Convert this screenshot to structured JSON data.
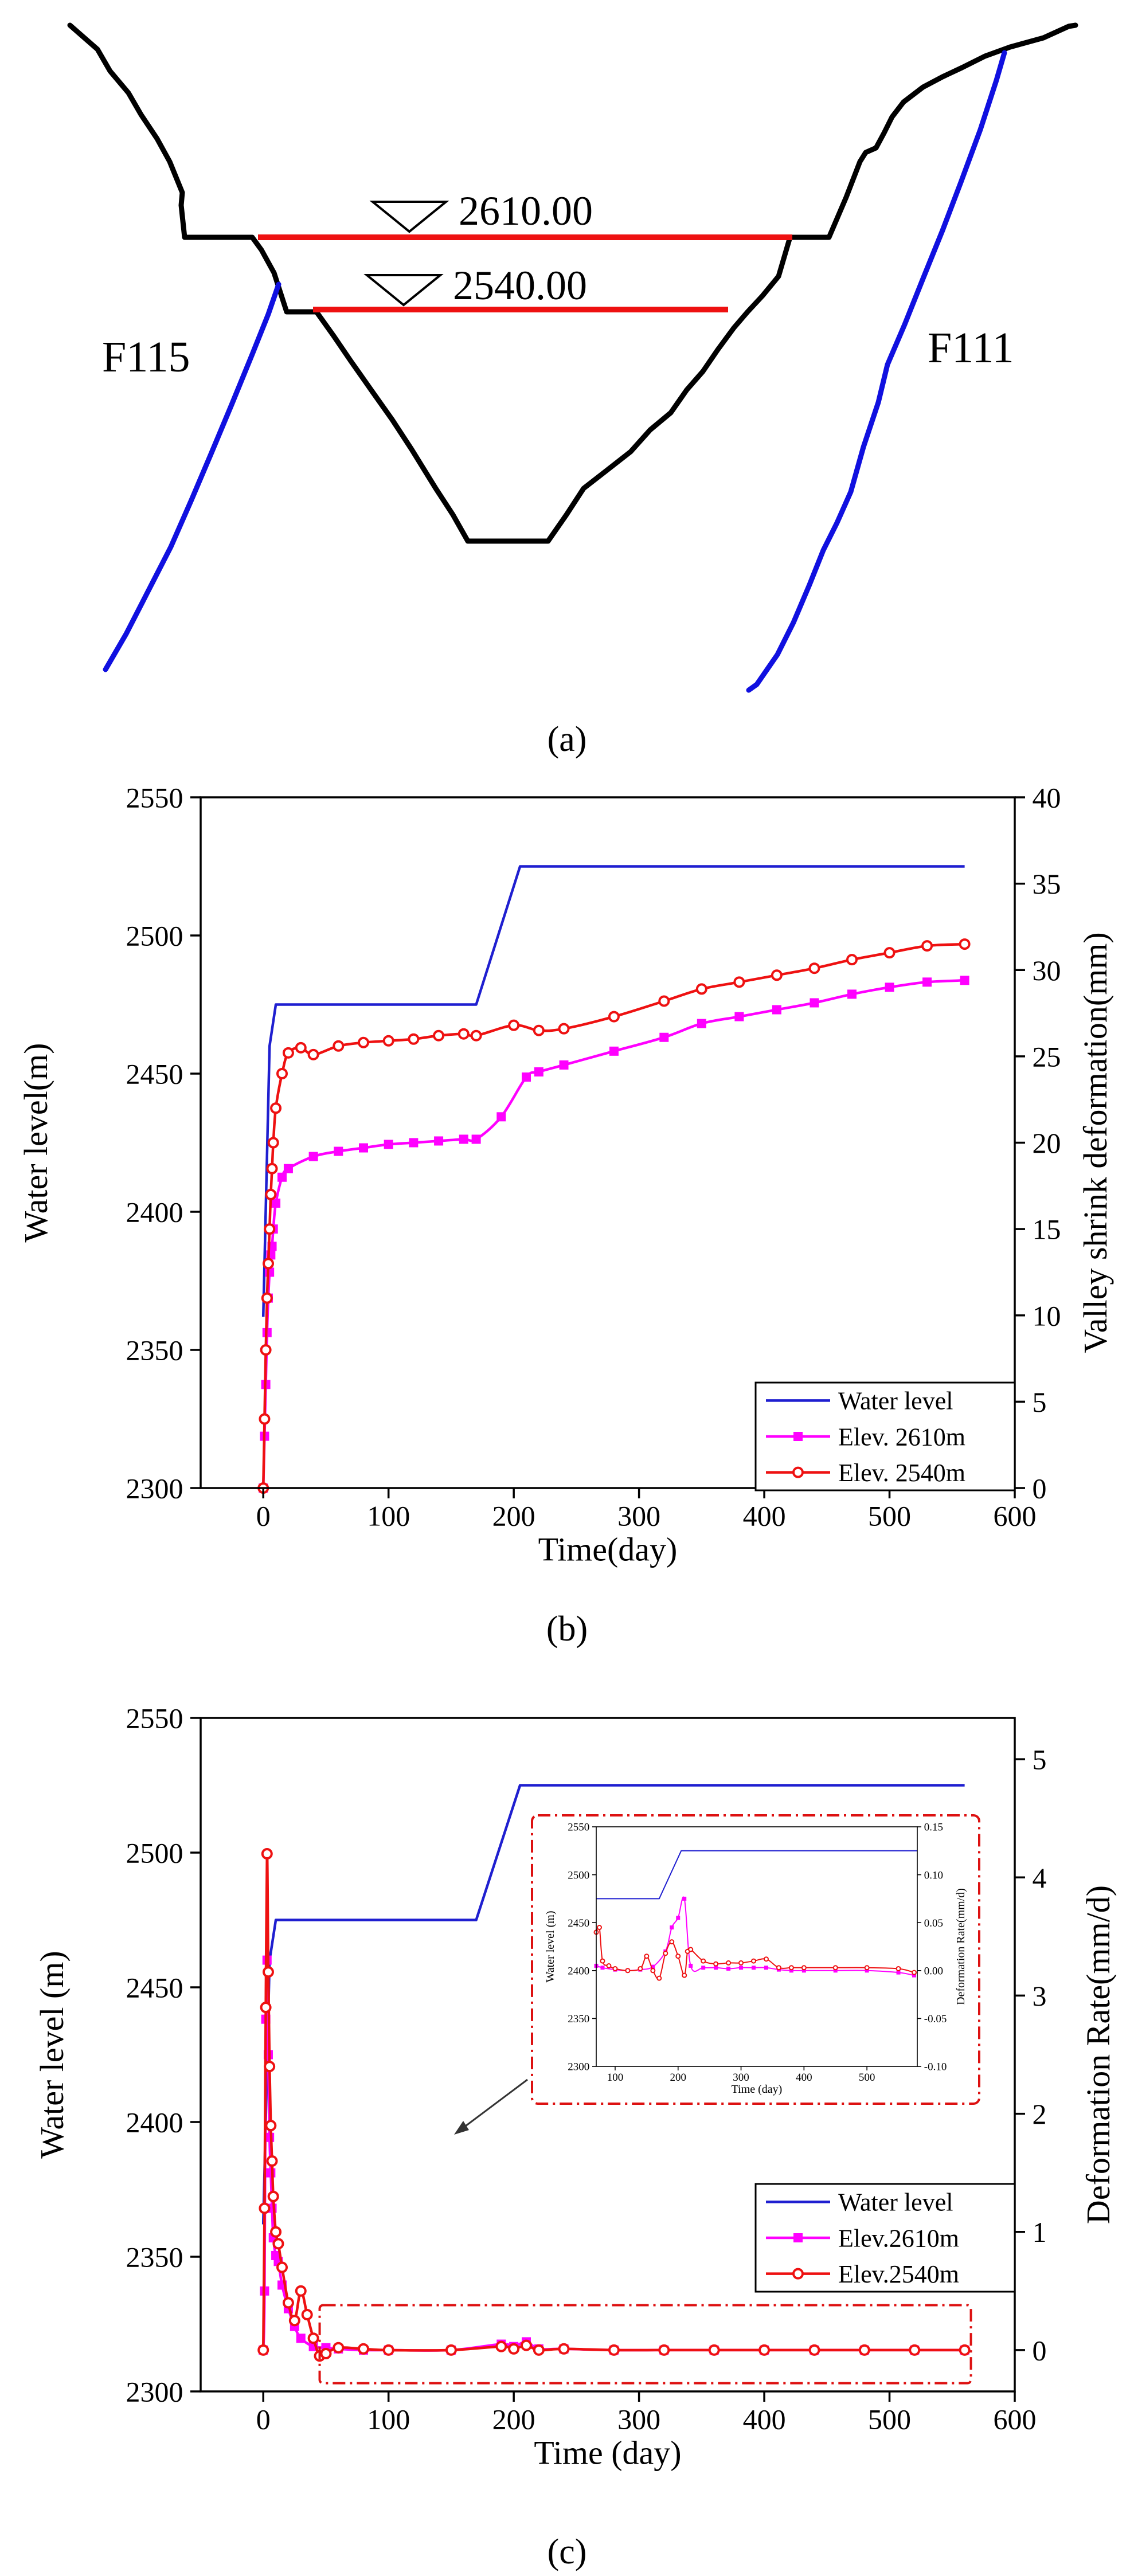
{
  "panels": {
    "a": {
      "label": "(a)",
      "water_level_1": "2610.00",
      "water_level_2": "2540.00",
      "fault_left": "F115",
      "fault_right": "F111"
    },
    "b": {
      "label": "(b)"
    },
    "c": {
      "label": "(c)"
    }
  },
  "colors": {
    "water": "#1f1fd0",
    "elev2610": "#ff00ff",
    "elev2540": "#ee1111",
    "terrain": "#000000",
    "fault": "#1010e0",
    "reservoir_line": "#ee1111",
    "inset_frame": "#dd1111"
  },
  "chart_data": [
    {
      "id": "b",
      "type": "line",
      "xlabel": "Time(day)",
      "ylabel_left": "Water level(m)",
      "ylabel_right": "Valley shrink deformation(mm)",
      "xlim": [
        -50,
        600
      ],
      "ylim_left": [
        2300,
        2550
      ],
      "ylim_right": [
        0,
        40
      ],
      "xticks": [
        0,
        100,
        200,
        300,
        400,
        500,
        600
      ],
      "yticks_left": [
        2300,
        2350,
        2400,
        2450,
        2500,
        2550
      ],
      "yticks_right": [
        0,
        5,
        10,
        15,
        20,
        25,
        30,
        35,
        40
      ],
      "legend": [
        "Water level",
        "Elev. 2610m",
        "Elev. 2540m"
      ],
      "legend_position": "bottom-right",
      "series": [
        {
          "name": "Water level",
          "axis": "left",
          "x": [
            0,
            5,
            10,
            170,
            205,
            560
          ],
          "y": [
            2362,
            2460,
            2475,
            2475,
            2525,
            2525
          ]
        },
        {
          "name": "Elev. 2610m",
          "axis": "right",
          "x": [
            0,
            1,
            2,
            3,
            4,
            5,
            6,
            7,
            8,
            10,
            15,
            20,
            40,
            60,
            80,
            100,
            120,
            140,
            160,
            170,
            190,
            210,
            220,
            240,
            280,
            320,
            350,
            380,
            410,
            440,
            470,
            500,
            530,
            560
          ],
          "y": [
            0,
            3,
            6,
            9,
            11,
            12.5,
            13.5,
            14,
            15,
            16.5,
            18,
            18.5,
            19.2,
            19.5,
            19.7,
            19.9,
            20,
            20.1,
            20.2,
            20.2,
            21.5,
            23.8,
            24.1,
            24.5,
            25.3,
            26.1,
            26.9,
            27.3,
            27.7,
            28.1,
            28.6,
            29,
            29.3,
            29.4
          ]
        },
        {
          "name": "Elev. 2540m",
          "axis": "right",
          "x": [
            0,
            1,
            2,
            3,
            4,
            5,
            6,
            7,
            8,
            10,
            15,
            20,
            30,
            40,
            60,
            80,
            100,
            120,
            140,
            160,
            170,
            200,
            220,
            240,
            280,
            320,
            350,
            380,
            410,
            440,
            470,
            500,
            530,
            560
          ],
          "y": [
            0,
            4,
            8,
            11,
            13,
            15,
            17,
            18.5,
            20,
            22,
            24,
            25.2,
            25.5,
            25.1,
            25.6,
            25.8,
            25.9,
            26,
            26.2,
            26.3,
            26.2,
            26.8,
            26.5,
            26.6,
            27.3,
            28.2,
            28.9,
            29.3,
            29.7,
            30.1,
            30.6,
            31,
            31.4,
            31.5
          ]
        }
      ]
    },
    {
      "id": "c",
      "type": "line",
      "xlabel": "Time (day)",
      "ylabel_left": "Water level (m)",
      "ylabel_right": "Deformation Rate(mm/d)",
      "xlim": [
        -50,
        600
      ],
      "ylim_left": [
        2300,
        2550
      ],
      "ylim_right": [
        -0.35,
        5.35
      ],
      "xticks": [
        0,
        100,
        200,
        300,
        400,
        500,
        600
      ],
      "yticks_left": [
        2300,
        2350,
        2400,
        2450,
        2500,
        2550
      ],
      "yticks_right": [
        0,
        1,
        2,
        3,
        4,
        5
      ],
      "legend": [
        "Water level",
        "Elev.2610m",
        "Elev.2540m"
      ],
      "legend_position": "lower-right",
      "series": [
        {
          "name": "Water level",
          "axis": "left",
          "x": [
            0,
            5,
            10,
            170,
            205,
            560
          ],
          "y": [
            2362,
            2460,
            2475,
            2475,
            2525,
            2525
          ]
        },
        {
          "name": "Elev.2610m",
          "axis": "right",
          "x": [
            0,
            1,
            2,
            3,
            4,
            5,
            6,
            7,
            8,
            10,
            12,
            15,
            20,
            25,
            30,
            40,
            50,
            60,
            80,
            100,
            150,
            190,
            200,
            210,
            220,
            240,
            280,
            320,
            360,
            400,
            440,
            480,
            520,
            560
          ],
          "y": [
            0,
            0.5,
            2.8,
            3.3,
            2.5,
            1.8,
            1.5,
            1.2,
            0.95,
            0.8,
            0.75,
            0.55,
            0.35,
            0.2,
            0.1,
            0.03,
            0.02,
            0.01,
            0,
            0,
            0,
            0.05,
            0.03,
            0.07,
            0.01,
            0.01,
            0,
            0,
            0,
            0,
            0,
            0,
            0,
            0
          ]
        },
        {
          "name": "Elev.2540m",
          "axis": "right",
          "x": [
            0,
            1,
            2,
            3,
            4,
            5,
            6,
            7,
            8,
            10,
            12,
            15,
            20,
            25,
            30,
            35,
            40,
            45,
            50,
            60,
            80,
            100,
            150,
            190,
            200,
            210,
            220,
            240,
            280,
            320,
            360,
            400,
            440,
            480,
            520,
            560
          ],
          "y": [
            0,
            1.2,
            2.9,
            4.2,
            3.2,
            2.4,
            1.9,
            1.6,
            1.3,
            1.0,
            0.9,
            0.7,
            0.4,
            0.25,
            0.5,
            0.3,
            0.1,
            -0.05,
            -0.03,
            0.02,
            0.01,
            0,
            0,
            0.03,
            0.01,
            0.04,
            0,
            0.01,
            0,
            0,
            0,
            0,
            0,
            0,
            0,
            0
          ]
        }
      ],
      "inset": {
        "xlim": [
          70,
          580
        ],
        "ylim_left": [
          2300,
          2550
        ],
        "ylim_right": [
          -0.1,
          0.15
        ],
        "xticks": [
          100,
          200,
          300,
          400,
          500
        ],
        "yticks_left": [
          2300,
          2350,
          2400,
          2450,
          2500,
          2550
        ],
        "yticks_right": [
          "-0.10",
          "-0.05",
          "0.00",
          "0.05",
          "0.10",
          "0.15"
        ],
        "yticks_right_values": [
          -0.1,
          -0.05,
          0.0,
          0.05,
          0.1,
          0.15
        ],
        "xlabel": "Time (day)",
        "ylabel_left": "Water level (m)",
        "ylabel_right": "Deformation Rate(mm/d)",
        "series": [
          {
            "name": "Water level",
            "axis": "left",
            "x": [
              70,
              170,
              205,
              580
            ],
            "y": [
              2475,
              2475,
              2525,
              2525
            ]
          },
          {
            "name": "Elev.2610m",
            "axis": "right",
            "x": [
              70,
              80,
              100,
              120,
              140,
              160,
              180,
              190,
              200,
              210,
              220,
              240,
              260,
              280,
              300,
              320,
              340,
              360,
              380,
              400,
              450,
              500,
              550,
              575
            ],
            "y": [
              0.005,
              0.003,
              0.001,
              0,
              0.001,
              0.004,
              0.02,
              0.045,
              0.055,
              0.075,
              0.005,
              0.003,
              0.003,
              0.002,
              0.003,
              0.003,
              0.003,
              0.001,
              0,
              0,
              0,
              0,
              -0.002,
              -0.005
            ]
          },
          {
            "name": "Elev.2540m",
            "axis": "right",
            "x": [
              70,
              75,
              80,
              90,
              100,
              120,
              140,
              150,
              160,
              170,
              180,
              190,
              200,
              210,
              215,
              220,
              240,
              260,
              280,
              300,
              320,
              340,
              360,
              380,
              400,
              450,
              500,
              550,
              575
            ],
            "y": [
              0.04,
              0.045,
              0.01,
              0.005,
              0.002,
              0,
              0.002,
              0.015,
              0,
              -0.008,
              0.018,
              0.03,
              0.015,
              -0.005,
              0.02,
              0.022,
              0.01,
              0.007,
              0.008,
              0.008,
              0.01,
              0.012,
              0.003,
              0.003,
              0.003,
              0.003,
              0.003,
              0.002,
              -0.002
            ]
          }
        ]
      }
    }
  ]
}
